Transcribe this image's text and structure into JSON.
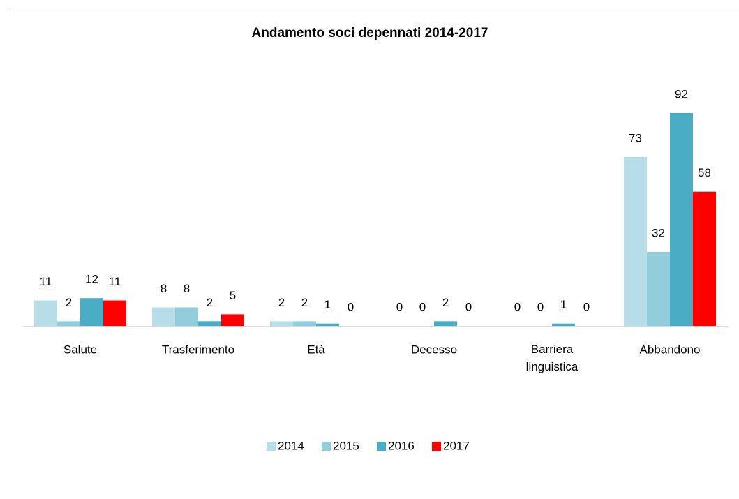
{
  "chart_data": {
    "type": "bar",
    "title": "Andamento soci depennati 2014-2017",
    "categories": [
      "Salute",
      "Trasferimento",
      "Età",
      "Decesso",
      "Barriera linguistica",
      "Abbandono"
    ],
    "series": [
      {
        "name": "2014",
        "color": "#b7dde8",
        "values": [
          11,
          8,
          2,
          0,
          0,
          73
        ]
      },
      {
        "name": "2015",
        "color": "#92cddc",
        "values": [
          2,
          8,
          2,
          0,
          0,
          32
        ]
      },
      {
        "name": "2016",
        "color": "#4bacc6",
        "values": [
          12,
          2,
          1,
          2,
          1,
          92
        ]
      },
      {
        "name": "2017",
        "color": "#ff0000",
        "values": [
          11,
          5,
          0,
          0,
          0,
          58
        ]
      }
    ],
    "legend": "bottom"
  }
}
